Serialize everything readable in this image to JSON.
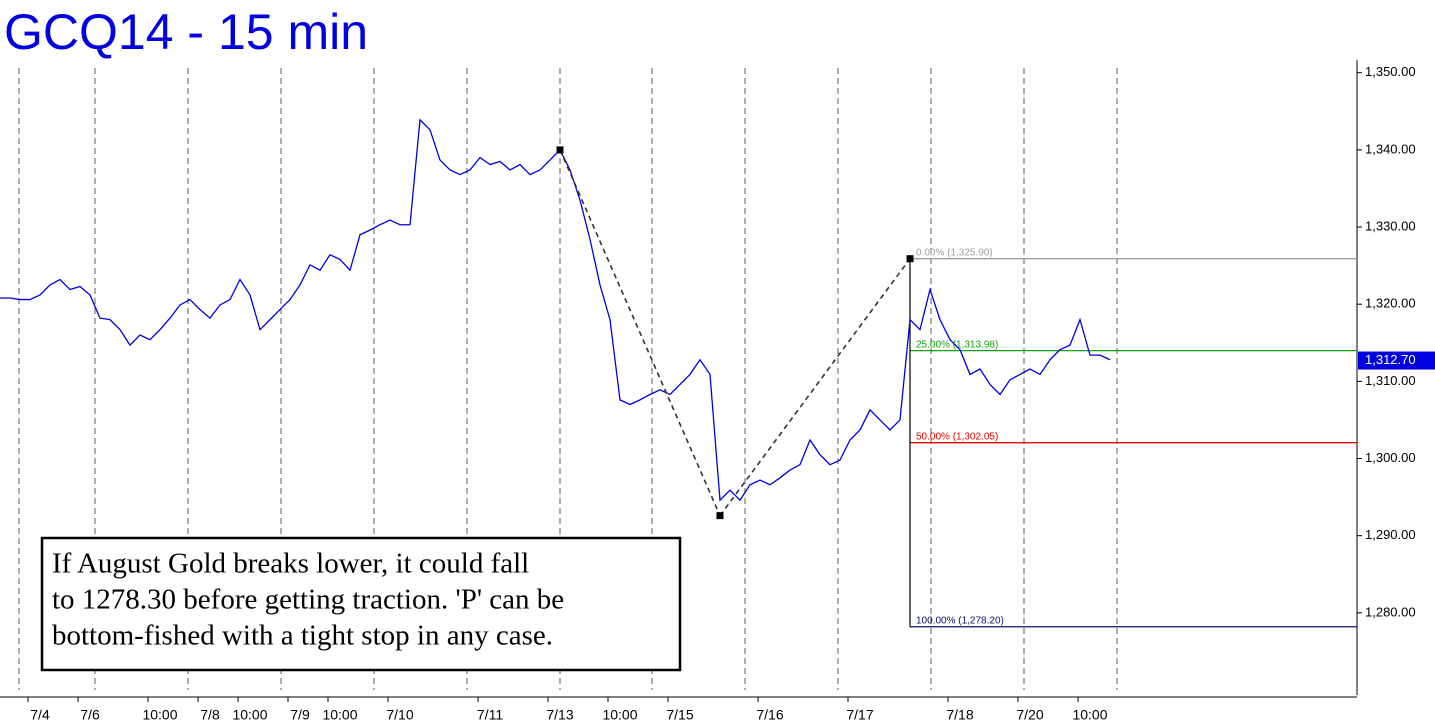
{
  "chart_data": {
    "type": "line",
    "title": "GCQ14 - 15 min",
    "categories": [
      null,
      null,
      null,
      null,
      "7/4",
      null,
      null,
      null,
      null,
      "7/6",
      null,
      null,
      null,
      null,
      null,
      null,
      "10:00",
      null,
      null,
      null,
      null,
      "7/8",
      null,
      null,
      null,
      "10:00",
      null,
      null,
      null,
      null,
      "7/9",
      null,
      null,
      null,
      "10:00",
      null,
      null,
      null,
      null,
      null,
      "7/10",
      null,
      null,
      null,
      null,
      null,
      null,
      null,
      null,
      "7/11",
      null,
      null,
      null,
      null,
      null,
      null,
      "7/13",
      null,
      null,
      null,
      null,
      null,
      "10:00",
      null,
      null,
      null,
      null,
      null,
      "7/15",
      null,
      null,
      null,
      null,
      null,
      null,
      null,
      null,
      "7/16",
      null,
      null,
      null,
      null,
      null,
      null,
      null,
      null,
      "7/17",
      null,
      null,
      null,
      null,
      null,
      null,
      null,
      null,
      null,
      "7/18",
      null,
      null,
      null,
      null,
      null,
      null,
      "7/20",
      null,
      null,
      null,
      null,
      null,
      "10:00",
      null,
      null
    ],
    "series": [
      {
        "name": "GCQ14",
        "color": "#0000e0",
        "values": [
          1320.8,
          1320.8,
          1320.6,
          1320.6,
          1321.2,
          1322.5,
          1323.2,
          1321.9,
          1322.3,
          1321.2,
          1318.2,
          1318.0,
          1316.7,
          1314.7,
          1316.0,
          1315.4,
          1316.7,
          1318.2,
          1319.9,
          1320.6,
          1319.3,
          1318.2,
          1319.9,
          1320.6,
          1323.2,
          1321.2,
          1316.7,
          1318.0,
          1319.3,
          1320.6,
          1322.5,
          1325.1,
          1324.4,
          1326.4,
          1325.8,
          1324.4,
          1329.0,
          1329.6,
          1330.3,
          1330.9,
          1330.3,
          1330.3,
          1343.9,
          1342.6,
          1338.7,
          1337.4,
          1336.8,
          1337.4,
          1339.0,
          1338.1,
          1338.5,
          1337.4,
          1338.1,
          1336.8,
          1337.4,
          1338.7,
          1340.0,
          1337.4,
          1333.5,
          1328.4,
          1322.5,
          1318.0,
          1307.6,
          1307.0,
          1307.6,
          1308.3,
          1308.9,
          1308.3,
          1309.6,
          1310.9,
          1312.8,
          1310.9,
          1294.6,
          1295.9,
          1294.6,
          1296.6,
          1297.2,
          1296.6,
          1297.5,
          1298.5,
          1299.2,
          1302.4,
          1300.5,
          1299.2,
          1299.8,
          1302.4,
          1303.7,
          1306.3,
          1305.0,
          1303.7,
          1305.0,
          1318.0,
          1316.7,
          1321.9,
          1318.0,
          1315.4,
          1314.1,
          1310.9,
          1311.6,
          1309.6,
          1308.3,
          1310.2,
          1310.9,
          1311.6,
          1310.9,
          1312.8,
          1314.1,
          1314.7,
          1318.0,
          1313.4,
          1313.4,
          1312.8
        ]
      },
      {
        "name": "P",
        "color": "#333333",
        "values": [
          null,
          null,
          null,
          null,
          null,
          null,
          null,
          null,
          null,
          null,
          null,
          null,
          null,
          null,
          null,
          null,
          null,
          null,
          null,
          null,
          null,
          null,
          null,
          null,
          null,
          null,
          null,
          null,
          null,
          null,
          null,
          null,
          null,
          null,
          null,
          null,
          null,
          null,
          null,
          null,
          null,
          null,
          null,
          null,
          null,
          null,
          null,
          null,
          null,
          null,
          null,
          null,
          null,
          null,
          null,
          null,
          1340.0,
          null,
          null,
          null,
          null,
          null,
          null,
          null,
          null,
          null,
          null,
          null,
          null,
          null,
          null,
          null,
          1292.6,
          null,
          null,
          null,
          null,
          null,
          null,
          null,
          null,
          null,
          null,
          null,
          null,
          null,
          null,
          null,
          null,
          null,
          null,
          1325.9,
          null,
          null,
          null,
          null,
          null,
          null,
          null,
          null,
          null,
          null,
          null,
          null,
          null,
          null,
          null,
          null,
          null,
          null,
          null,
          null
        ]
      }
    ],
    "last_value": {
      "value": 1312.7,
      "label": "1,312.70"
    },
    "fib_levels": [
      {
        "value": 1325.9,
        "label": "0.00% (1,325.90)",
        "color": "#a0a0a0"
      },
      {
        "value": 1313.98,
        "label": "25.00% (1,313.98)",
        "color": "#10a010"
      },
      {
        "value": 1302.05,
        "label": "50.00% (1,302.05)",
        "color": "#e00000"
      },
      {
        "value": 1278.2,
        "label": "100.00% (1,278.20)",
        "color": "#10106e"
      }
    ],
    "annotation": [
      "If August Gold breaks lower, it could fall",
      "to 1278.30 before getting traction. 'P' can be",
      "bottom-fished with a tight stop in any case."
    ],
    "ylim": [
      1270,
      1351
    ],
    "yticks": [
      {
        "value": 1280,
        "label": "1,280.00"
      },
      {
        "value": 1290,
        "label": "1,290.00"
      },
      {
        "value": 1300,
        "label": "1,300.00"
      },
      {
        "value": 1310,
        "label": "1,310.00"
      },
      {
        "value": 1320,
        "label": "1,320.00"
      },
      {
        "value": 1330,
        "label": "1,330.00"
      },
      {
        "value": 1340,
        "label": "1,340.00"
      },
      {
        "value": 1350,
        "label": "1,350.00"
      }
    ]
  }
}
